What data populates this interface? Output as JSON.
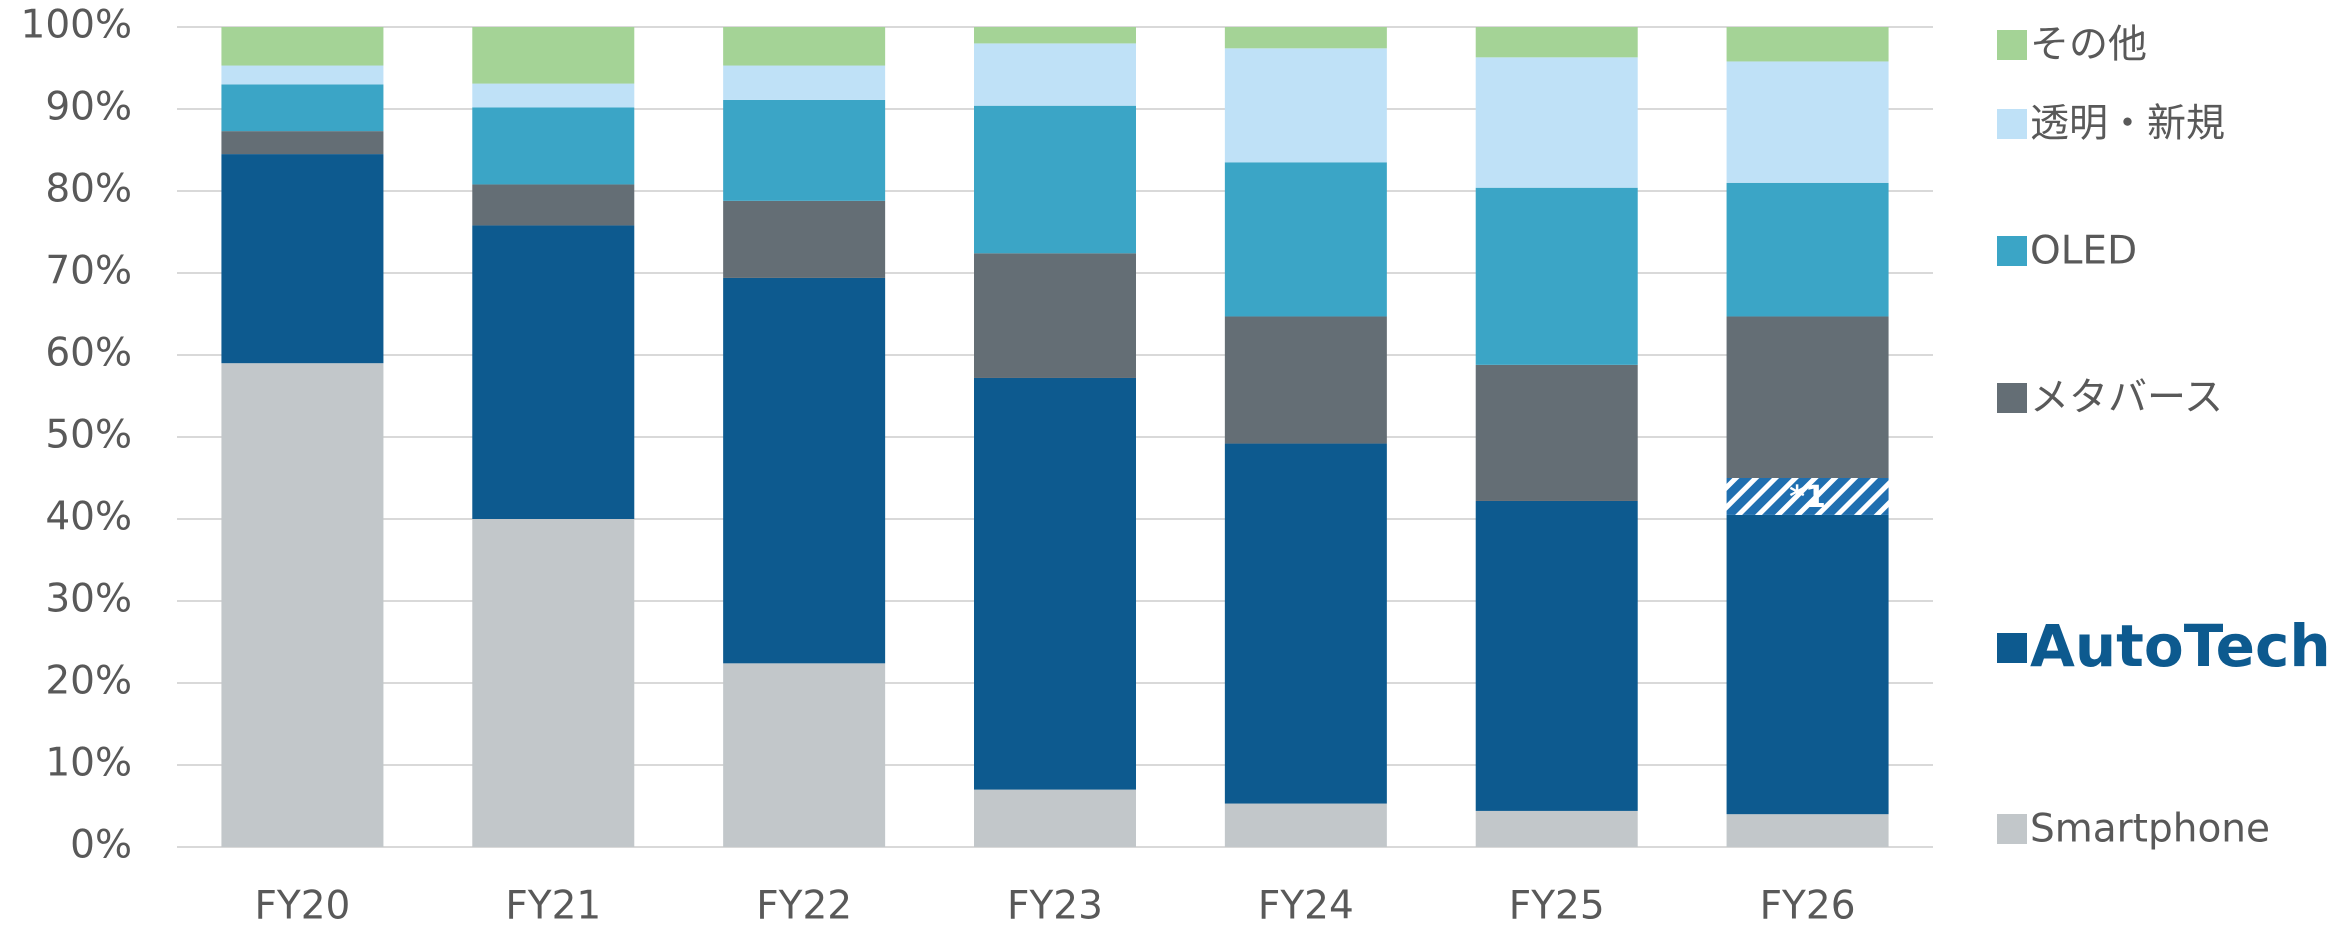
{
  "chart_data": {
    "type": "stacked_bar",
    "categories": [
      "FY20",
      "FY21",
      "FY22",
      "FY23",
      "FY24",
      "FY25",
      "FY26"
    ],
    "series": [
      {
        "name": "Smartphone",
        "color": "#c2c7ca",
        "values": [
          59,
          40,
          22.4,
          7,
          5.3,
          4.4,
          4
        ]
      },
      {
        "name": "AutoTech",
        "color": "#0d5a8f",
        "bold": true,
        "values": [
          25.5,
          35.8,
          47,
          50.2,
          43.9,
          37.8,
          36.5
        ]
      },
      {
        "name": "メタバース",
        "color": "#646e75",
        "values": [
          2.8,
          5,
          9.4,
          15.2,
          15.5,
          16.6,
          19.7
        ]
      },
      {
        "name": "OLED",
        "color": "#3ba5c6",
        "values": [
          5.7,
          9.4,
          12.3,
          18,
          18.8,
          21.6,
          16.3
        ]
      },
      {
        "name": "透明・新規",
        "color": "#bfe1f7",
        "values": [
          2.3,
          2.9,
          4.2,
          7.6,
          13.9,
          15.9,
          14.8
        ]
      },
      {
        "name": "その他",
        "color": "#a4d396",
        "values": [
          4.7,
          6.9,
          4.7,
          2,
          2.6,
          3.7,
          4.2
        ]
      }
    ],
    "highlight": {
      "category": "FY26",
      "after_series": "AutoTech",
      "value": 4.5,
      "label": "*1",
      "color": "#0d5a8f"
    },
    "ylim": [
      0,
      100
    ],
    "yticks": [
      {
        "value": 0,
        "label": "0%"
      },
      {
        "value": 10,
        "label": "10%"
      },
      {
        "value": 20,
        "label": "20%"
      },
      {
        "value": 30,
        "label": "30%"
      },
      {
        "value": 40,
        "label": "40%"
      },
      {
        "value": 50,
        "label": "50%"
      },
      {
        "value": 60,
        "label": "60%"
      },
      {
        "value": 70,
        "label": "70%"
      },
      {
        "value": 80,
        "label": "80%"
      },
      {
        "value": 90,
        "label": "90%"
      },
      {
        "value": 100,
        "label": "100%"
      }
    ],
    "grid": true,
    "legend": "right"
  }
}
